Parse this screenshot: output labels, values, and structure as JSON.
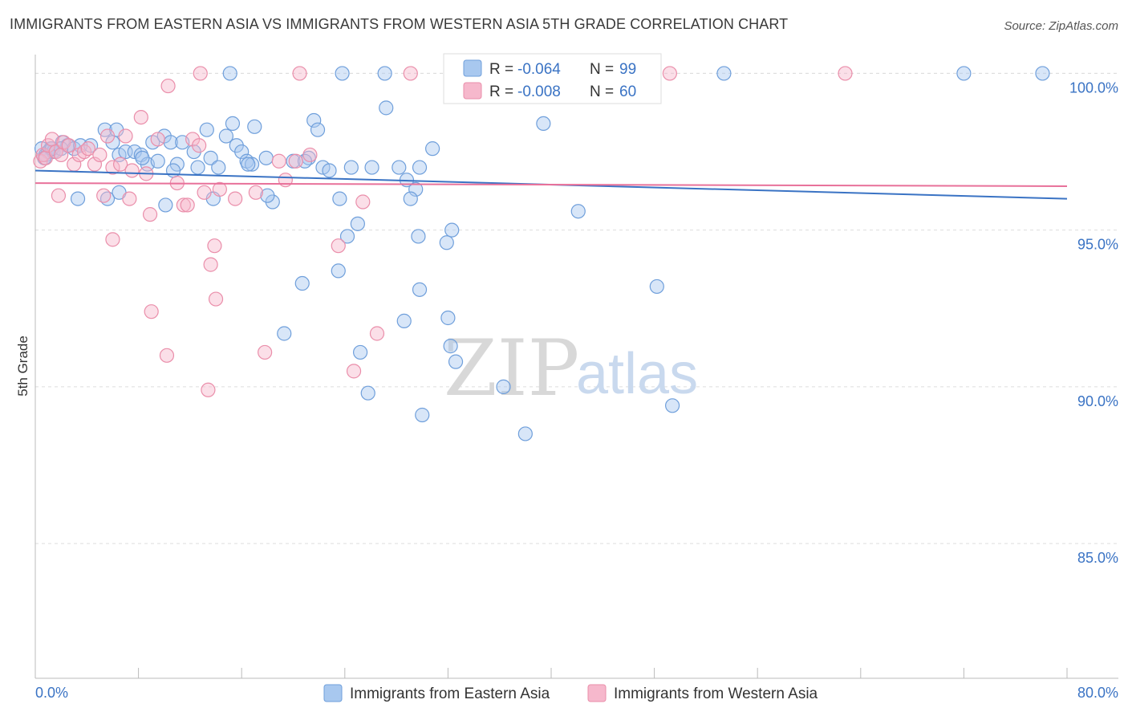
{
  "title": "IMMIGRANTS FROM EASTERN ASIA VS IMMIGRANTS FROM WESTERN ASIA 5TH GRADE CORRELATION CHART",
  "source": "Source: ZipAtlas.com",
  "watermark": {
    "zip": "ZIP",
    "atlas": "atlas"
  },
  "legend": {
    "rows": [
      {
        "r_label": "R = ",
        "r_value": "-0.064",
        "n_label": "N = ",
        "n_value": "99",
        "color": "#a8c8ef"
      },
      {
        "r_label": "R = ",
        "r_value": "-0.008",
        "n_label": "N = ",
        "n_value": "60",
        "color": "#f6b8cc"
      }
    ]
  },
  "chart_data": {
    "type": "scatter",
    "xlabel": "",
    "ylabel": "5th Grade",
    "xlim": [
      0,
      80
    ],
    "ylim": [
      80.7,
      100.6
    ],
    "x_tick_labels": [
      "0.0%",
      "80.0%"
    ],
    "y_ticks": [
      85,
      90,
      95,
      100
    ],
    "y_tick_labels": [
      "85.0%",
      "90.0%",
      "95.0%",
      "100.0%"
    ],
    "grid": true,
    "series": [
      {
        "name": "Immigrants from Eastern Asia",
        "color": "#a8c8ef",
        "stroke": "#6f9fdb",
        "line_color": "#3a73c4",
        "trend": {
          "x0": 0,
          "y0": 96.9,
          "x1": 80,
          "y1": 96.0
        },
        "points": [
          [
            0.5,
            97.6
          ],
          [
            0.8,
            97.4
          ],
          [
            1.0,
            97.5
          ],
          [
            1.2,
            97.6
          ],
          [
            1.4,
            97.5
          ],
          [
            1.6,
            97.5
          ],
          [
            2.1,
            97.8
          ],
          [
            2.5,
            97.7
          ],
          [
            3.0,
            97.6
          ],
          [
            3.5,
            97.7
          ],
          [
            4.3,
            97.7
          ],
          [
            5.4,
            98.2
          ],
          [
            6.0,
            97.8
          ],
          [
            6.3,
            98.2
          ],
          [
            6.5,
            97.4
          ],
          [
            7.0,
            97.5
          ],
          [
            7.7,
            97.5
          ],
          [
            8.2,
            97.4
          ],
          [
            8.7,
            97.1
          ],
          [
            9.1,
            97.8
          ],
          [
            10.0,
            98.0
          ],
          [
            10.5,
            97.8
          ],
          [
            11.0,
            97.1
          ],
          [
            11.4,
            97.8
          ],
          [
            12.3,
            97.5
          ],
          [
            12.6,
            97.0
          ],
          [
            13.3,
            98.2
          ],
          [
            13.6,
            97.3
          ],
          [
            14.2,
            97.0
          ],
          [
            14.8,
            98.0
          ],
          [
            15.3,
            98.4
          ],
          [
            15.6,
            97.7
          ],
          [
            16.0,
            97.5
          ],
          [
            16.4,
            97.2
          ],
          [
            16.8,
            97.1
          ],
          [
            17.0,
            98.3
          ],
          [
            17.9,
            97.3
          ],
          [
            18.4,
            95.9
          ],
          [
            20.0,
            97.2
          ],
          [
            21.2,
            97.3
          ],
          [
            21.6,
            98.5
          ],
          [
            21.9,
            98.2
          ],
          [
            22.3,
            97.0
          ],
          [
            22.8,
            96.9
          ],
          [
            24.5,
            97.0
          ],
          [
            25.0,
            95.2
          ],
          [
            26.1,
            97.0
          ],
          [
            27.2,
            98.9
          ],
          [
            28.2,
            97.0
          ],
          [
            28.8,
            96.6
          ],
          [
            29.5,
            96.3
          ],
          [
            29.8,
            97.0
          ],
          [
            30.8,
            97.6
          ],
          [
            5.6,
            96.0
          ],
          [
            3.3,
            96.0
          ],
          [
            10.1,
            95.8
          ],
          [
            13.8,
            96.0
          ],
          [
            15.1,
            100.0
          ],
          [
            23.8,
            100.0
          ],
          [
            27.1,
            100.0
          ],
          [
            34.4,
            100.0
          ],
          [
            36.8,
            100.0
          ],
          [
            43.4,
            100.0
          ],
          [
            53.4,
            100.0
          ],
          [
            72.0,
            100.0
          ],
          [
            78.1,
            100.0
          ],
          [
            39.4,
            98.4
          ],
          [
            42.1,
            95.6
          ],
          [
            32.3,
            95.0
          ],
          [
            31.9,
            94.6
          ],
          [
            29.7,
            94.8
          ],
          [
            24.2,
            94.8
          ],
          [
            23.5,
            93.7
          ],
          [
            20.7,
            93.3
          ],
          [
            29.8,
            93.1
          ],
          [
            48.2,
            93.2
          ],
          [
            28.6,
            92.1
          ],
          [
            32.0,
            92.2
          ],
          [
            19.3,
            91.7
          ],
          [
            25.2,
            91.1
          ],
          [
            32.2,
            91.3
          ],
          [
            32.6,
            90.8
          ],
          [
            36.3,
            90.0
          ],
          [
            25.8,
            89.8
          ],
          [
            30.0,
            89.1
          ],
          [
            49.4,
            89.4
          ],
          [
            38.0,
            88.5
          ],
          [
            6.5,
            96.2
          ],
          [
            18.0,
            96.1
          ],
          [
            23.6,
            96.0
          ],
          [
            29.1,
            96.0
          ],
          [
            0.7,
            97.3
          ],
          [
            1.3,
            97.6
          ],
          [
            8.3,
            97.3
          ],
          [
            2.0,
            97.6
          ],
          [
            9.5,
            97.2
          ],
          [
            10.7,
            96.9
          ],
          [
            16.5,
            97.1
          ],
          [
            20.9,
            97.2
          ]
        ]
      },
      {
        "name": "Immigrants from Western Asia",
        "color": "#f6b8cc",
        "stroke": "#ea8eaa",
        "line_color": "#e8719a",
        "trend": {
          "x0": 0,
          "y0": 96.5,
          "x1": 80,
          "y1": 96.4
        },
        "points": [
          [
            0.4,
            97.2
          ],
          [
            0.6,
            97.4
          ],
          [
            0.8,
            97.3
          ],
          [
            1.0,
            97.7
          ],
          [
            1.3,
            97.9
          ],
          [
            1.6,
            97.5
          ],
          [
            2.0,
            97.4
          ],
          [
            2.2,
            97.8
          ],
          [
            2.6,
            97.7
          ],
          [
            3.0,
            97.1
          ],
          [
            3.4,
            97.4
          ],
          [
            3.8,
            97.5
          ],
          [
            4.1,
            97.6
          ],
          [
            4.6,
            97.1
          ],
          [
            5.0,
            97.4
          ],
          [
            5.6,
            98.0
          ],
          [
            6.0,
            97.0
          ],
          [
            6.6,
            97.1
          ],
          [
            7.0,
            98.0
          ],
          [
            7.5,
            96.9
          ],
          [
            8.2,
            98.6
          ],
          [
            8.6,
            96.8
          ],
          [
            9.5,
            97.9
          ],
          [
            10.3,
            99.6
          ],
          [
            11.0,
            96.5
          ],
          [
            11.5,
            95.8
          ],
          [
            12.2,
            97.9
          ],
          [
            12.7,
            97.7
          ],
          [
            13.1,
            96.2
          ],
          [
            14.3,
            96.3
          ],
          [
            15.5,
            96.0
          ],
          [
            17.1,
            96.2
          ],
          [
            18.9,
            97.2
          ],
          [
            19.4,
            96.6
          ],
          [
            20.2,
            97.2
          ],
          [
            21.3,
            97.4
          ],
          [
            23.5,
            94.5
          ],
          [
            25.4,
            95.9
          ],
          [
            12.8,
            100.0
          ],
          [
            20.5,
            100.0
          ],
          [
            29.1,
            100.0
          ],
          [
            41.3,
            100.0
          ],
          [
            43.1,
            100.0
          ],
          [
            49.2,
            100.0
          ],
          [
            62.8,
            100.0
          ],
          [
            7.3,
            96.0
          ],
          [
            5.3,
            96.1
          ],
          [
            1.8,
            96.1
          ],
          [
            8.9,
            95.5
          ],
          [
            6.0,
            94.7
          ],
          [
            13.9,
            94.5
          ],
          [
            13.6,
            93.9
          ],
          [
            14.0,
            92.8
          ],
          [
            9.0,
            92.4
          ],
          [
            26.5,
            91.7
          ],
          [
            17.8,
            91.1
          ],
          [
            10.2,
            91.0
          ],
          [
            24.7,
            90.5
          ],
          [
            13.4,
            89.9
          ],
          [
            11.8,
            95.8
          ]
        ]
      }
    ]
  },
  "bottom_legend": [
    {
      "label": "Immigrants from Eastern Asia",
      "color": "#a8c8ef"
    },
    {
      "label": "Immigrants from Western Asia",
      "color": "#f6b8cc"
    }
  ]
}
